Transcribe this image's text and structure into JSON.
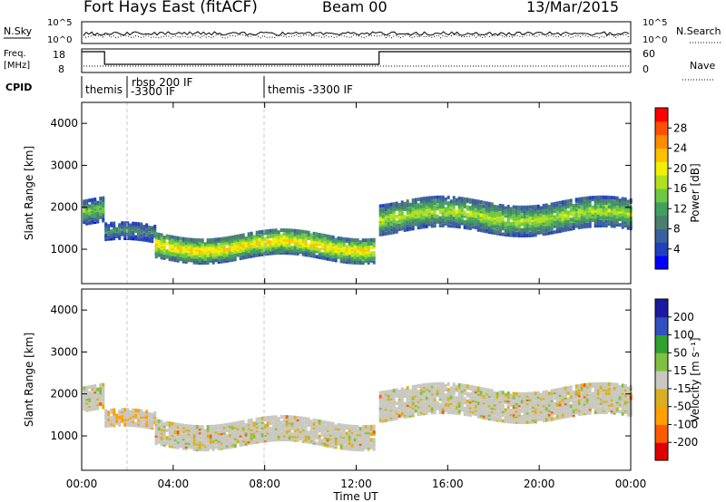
{
  "header": {
    "station": "Fort Hays East (fitACF)",
    "beam": "Beam 00",
    "date": "13/Mar/2015"
  },
  "status": {
    "nsky_label": "N.Sky",
    "nsky_ticks": [
      "10^5",
      "10^0"
    ],
    "nsearch_label": "N.Search",
    "nsearch_ticks": [
      "10^5",
      "10^0"
    ],
    "freq_label": "Freq.",
    "freq_unit": "[MHz]",
    "freq_ticks": [
      "18",
      "8"
    ],
    "nave_label": "Nave",
    "nave_ticks": [
      "60",
      "0"
    ],
    "cpid_label": "CPID",
    "cpid_segments": [
      {
        "text": "themis",
        "start_hour": 0.0
      },
      {
        "text": "rbsp 200 IF",
        "start_hour": 2.0
      },
      {
        "text": "-3300 IF",
        "start_hour": 2.0
      },
      {
        "text": "themis -3300 IF",
        "start_hour": 8.0
      }
    ],
    "freq_profile": {
      "x_hours": [
        0.0,
        1.0,
        1.0,
        13.0,
        13.0,
        24.0
      ],
      "mhz": [
        17.5,
        17.5,
        10.5,
        10.5,
        17.5,
        17.5
      ]
    }
  },
  "colorbars": {
    "power": {
      "label": "Power [dB]",
      "ticks": [
        "28",
        "24",
        "20",
        "16",
        "12",
        "8",
        "4"
      ],
      "colors": [
        "#0000ff",
        "#2040c0",
        "#3a5fa0",
        "#4a7f70",
        "#40a060",
        "#6ec840",
        "#b0e020",
        "#f0f000",
        "#ffc000",
        "#ff8c00",
        "#ff5000",
        "#ff0000"
      ]
    },
    "velocity": {
      "label": "Velocity [m s⁻¹]",
      "ticks": [
        "200",
        "100",
        "50",
        "15",
        "-15",
        "-50",
        "-100",
        "-200"
      ],
      "colors": [
        "#e00000",
        "#ff5a00",
        "#ffa000",
        "#d8b020",
        "#c8c8c0",
        "#80c040",
        "#30a030",
        "#3050c0",
        "#1a1aa0"
      ]
    }
  },
  "chart_data": [
    {
      "type": "heatmap",
      "panel": "power",
      "xlabel": "",
      "ylabel": "Slant Range [km]",
      "xlim": [
        0,
        24
      ],
      "ylim": [
        180,
        4500
      ],
      "yticks": [
        "4000",
        "3000",
        "2000",
        "1000"
      ],
      "echo_regions": [
        {
          "t0": 0.05,
          "t1": 0.9,
          "r_center": 1850,
          "r_half_width": 300,
          "power_db": 14
        },
        {
          "t0": 1.0,
          "t1": 3.2,
          "r_center": 1300,
          "r_half_width": 200,
          "power_db": 10
        },
        {
          "t0": 3.2,
          "t1": 12.8,
          "r_center": 1050,
          "r_half_width": 300,
          "power_db": 20
        },
        {
          "t0": 13.0,
          "t1": 24.0,
          "r_center": 1750,
          "r_half_width": 350,
          "power_db": 16
        }
      ]
    },
    {
      "type": "heatmap",
      "panel": "velocity",
      "xlabel": "Time UT",
      "ylabel": "Slant Range [km]",
      "xlim": [
        0,
        24
      ],
      "ylim": [
        180,
        4500
      ],
      "xticks": [
        "00:00",
        "04:00",
        "08:00",
        "12:00",
        "16:00",
        "20:00",
        "00:00"
      ],
      "yticks": [
        "4000",
        "3000",
        "2000",
        "1000"
      ],
      "echo_regions": [
        {
          "t0": 0.05,
          "t1": 0.9,
          "r_center": 1850,
          "r_half_width": 300,
          "velocity": 0
        },
        {
          "t0": 1.0,
          "t1": 3.2,
          "r_center": 1300,
          "r_half_width": 200,
          "velocity": -20
        },
        {
          "t0": 3.2,
          "t1": 12.8,
          "r_center": 1050,
          "r_half_width": 300,
          "velocity": 0
        },
        {
          "t0": 13.0,
          "t1": 24.0,
          "r_center": 1750,
          "r_half_width": 350,
          "velocity": 0
        }
      ]
    }
  ]
}
